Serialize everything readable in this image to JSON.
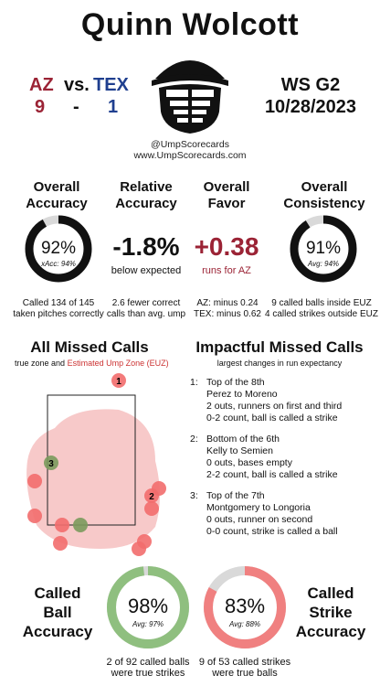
{
  "header": {
    "umpire_name": "Quinn Wolcott",
    "away_team": "AZ",
    "vs": "vs.",
    "home_team": "TEX",
    "away_score": "9",
    "dash": "-",
    "home_score": "1",
    "series_game": "WS  G2",
    "date": "10/28/2023",
    "handle": "@UmpScorecards",
    "site": "www.UmpScorecards.com",
    "icon": "umpire-mask-icon"
  },
  "stats": {
    "accuracy": {
      "title_line1": "Overall",
      "title_line2": "Accuracy",
      "value": "92%",
      "sub": "xAcc: 94%",
      "fraction": 0.92,
      "desc_line1": "Called 134 of 145",
      "desc_line2": "taken pitches correctly"
    },
    "relative": {
      "title_line1": "Relative",
      "title_line2": "Accuracy",
      "value": "-1.8%",
      "sub": "below expected",
      "desc_line1": "2.6 fewer correct",
      "desc_line2": "calls than avg. ump"
    },
    "favor": {
      "title_line1": "Overall",
      "title_line2": "Favor",
      "value": "+0.38",
      "sub": "runs for AZ",
      "desc_line1": "AZ: minus 0.24",
      "desc_line2": "TEX: minus 0.62"
    },
    "consistency": {
      "title_line1": "Overall",
      "title_line2": "Consistency",
      "value": "91%",
      "sub": "Avg: 94%",
      "fraction": 0.91,
      "desc_line1": "9 called balls inside EUZ",
      "desc_line2": "4 called strikes outside EUZ"
    }
  },
  "missed": {
    "title": "All Missed Calls",
    "legend_true": "true zone and",
    "legend_euz": "Estimated Ump Zone (EUZ)",
    "labels": [
      "1",
      "2",
      "3"
    ]
  },
  "impactful": {
    "title": "Impactful Missed Calls",
    "subtitle": "largest changes in run expectancy",
    "items": [
      {
        "num": "1:",
        "l1": "Top of the 8th",
        "l2": "Perez to Moreno",
        "l3": "2 outs, runners on first and third",
        "l4": "0-2 count, ball is called a strike"
      },
      {
        "num": "2:",
        "l1": "Bottom of the 6th",
        "l2": "Kelly to Semien",
        "l3": "0 outs, bases empty",
        "l4": "2-2 count, ball is called a strike"
      },
      {
        "num": "3:",
        "l1": "Top of the 7th",
        "l2": "Montgomery to Longoria",
        "l3": "0 outs, runner on second",
        "l4": "0-0 count, strike is called a ball"
      }
    ]
  },
  "bottom": {
    "ball": {
      "title_l1": "Called",
      "title_l2": "Ball",
      "title_l3": "Accuracy",
      "value": "98%",
      "sub": "Avg: 97%",
      "fraction": 0.98,
      "desc_l1": "2 of 92 called balls",
      "desc_l2": "were true strikes"
    },
    "strike": {
      "title_l1": "Called",
      "title_l2": "Strike",
      "title_l3": "Accuracy",
      "value": "83%",
      "sub": "Avg: 88%",
      "fraction": 0.83,
      "desc_l1": "9 of 53 called strikes",
      "desc_l2": "were true balls"
    }
  },
  "colors": {
    "dark": "#111111",
    "ring_track": "#d9d9d9",
    "ball_green": "#8fbf7f",
    "strike_red": "#f08080",
    "euz_fill": "#f7c9c9",
    "miss_red": "#f26d6d",
    "miss_green": "#7a9a5c",
    "favor_red": "#9b2335"
  }
}
